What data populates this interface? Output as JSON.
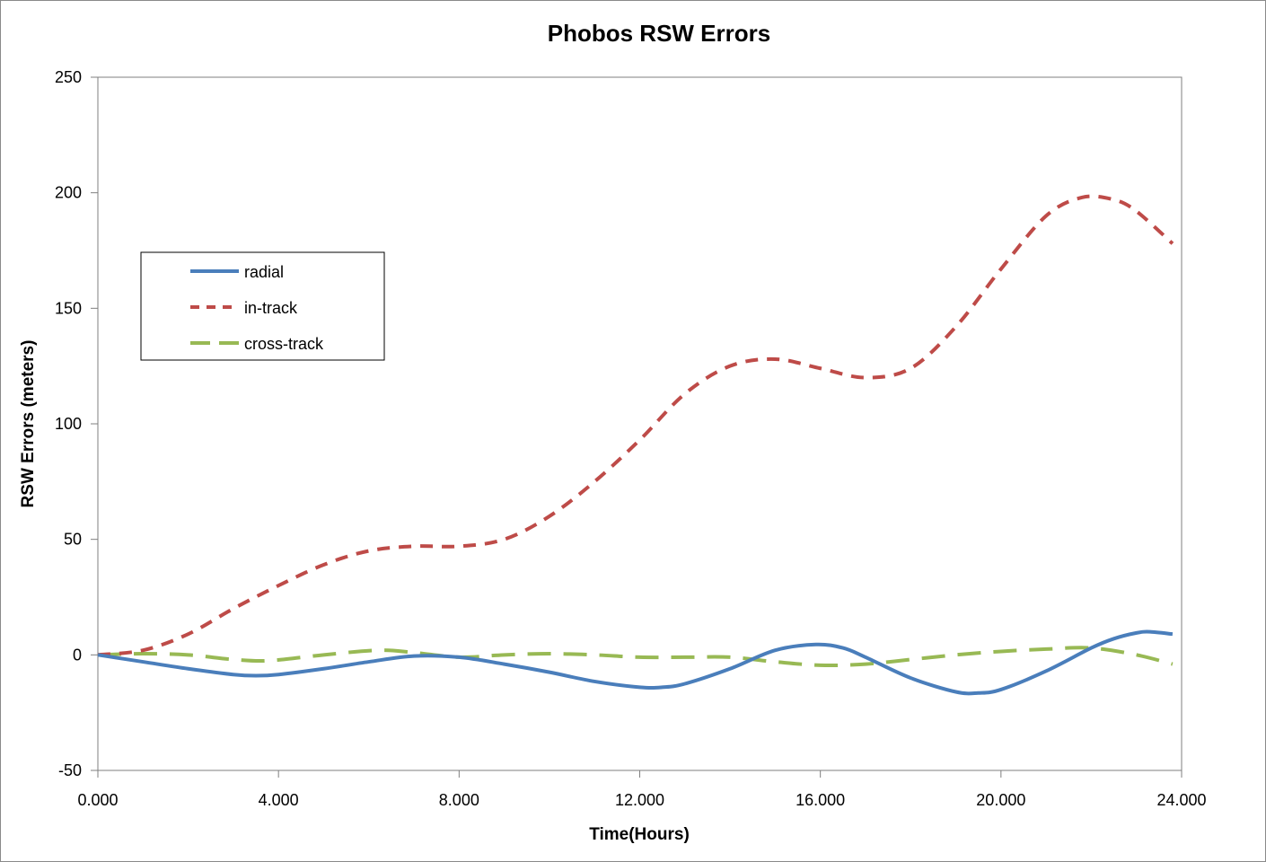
{
  "chart_data": {
    "type": "line",
    "title": "Phobos RSW Errors",
    "xlabel": "Time(Hours)",
    "ylabel": "RSW Errors (meters)",
    "xlim": [
      0,
      24
    ],
    "ylim": [
      -50,
      250
    ],
    "x_ticks": [
      "0.000",
      "4.000",
      "8.000",
      "12.000",
      "16.000",
      "20.000",
      "24.000"
    ],
    "x_tick_values": [
      0,
      4,
      8,
      12,
      16,
      20,
      24
    ],
    "y_ticks": [
      "-50",
      "0",
      "50",
      "100",
      "150",
      "200",
      "250"
    ],
    "y_tick_values": [
      -50,
      0,
      50,
      100,
      150,
      200,
      250
    ],
    "grid": false,
    "legend_position": "upper-left",
    "series": [
      {
        "name": "radial",
        "color": "#4a7ebb",
        "style": "solid",
        "x": [
          0,
          1,
          2,
          3,
          3.5,
          4,
          5,
          6,
          7,
          8,
          9,
          10,
          11,
          12,
          12.5,
          13,
          14,
          15,
          15.9,
          16.5,
          17,
          18,
          19,
          19.5,
          20,
          21,
          22,
          22.5,
          23,
          23.3,
          23.8
        ],
        "y": [
          0,
          -3,
          -6,
          -8.5,
          -9,
          -8.5,
          -6,
          -3,
          -0.5,
          -1,
          -4,
          -7.5,
          -11.5,
          -14,
          -14,
          -12.5,
          -6,
          2,
          4.5,
          3,
          -1,
          -10,
          -16,
          -16.5,
          -15,
          -7,
          3,
          7,
          9.5,
          10,
          9
        ]
      },
      {
        "name": "in-track",
        "color": "#be4b48",
        "style": "dashed",
        "x": [
          0,
          1,
          2,
          3,
          4,
          5,
          6,
          7,
          8,
          9,
          10,
          11,
          12,
          13,
          14,
          15,
          16,
          17,
          18,
          19,
          20,
          21,
          21.8,
          22.5,
          23,
          23.8
        ],
        "y": [
          0,
          2,
          9,
          20,
          30,
          39,
          45,
          47,
          47,
          50,
          60,
          75,
          93,
          113,
          125,
          128,
          124,
          120,
          124,
          142,
          167,
          190,
          198,
          197,
          192,
          178
        ]
      },
      {
        "name": "cross-track",
        "color": "#98b954",
        "style": "long-dashed",
        "x": [
          0,
          1,
          2,
          3,
          3.8,
          5,
          6.2,
          7,
          8,
          9,
          10,
          11,
          12,
          13,
          14,
          15,
          16,
          17,
          18,
          19,
          20,
          21,
          22,
          23,
          23.8
        ],
        "y": [
          0,
          0.5,
          0,
          -2,
          -2.5,
          0,
          2,
          1,
          -1,
          0,
          0.5,
          0,
          -1,
          -1,
          -1,
          -3,
          -4.5,
          -4,
          -2,
          0,
          1.5,
          2.5,
          3,
          0,
          -4
        ]
      }
    ]
  }
}
